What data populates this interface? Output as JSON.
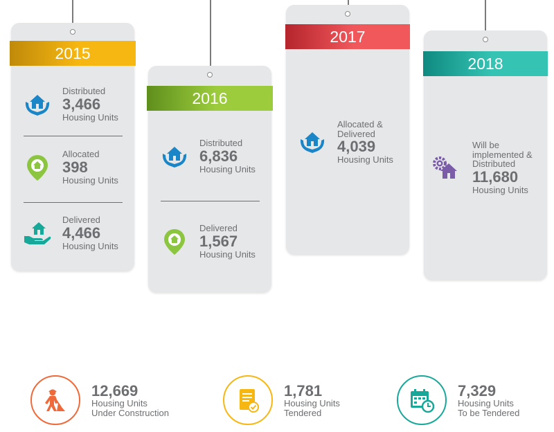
{
  "colors": {
    "y2015": [
      "#c08a0a",
      "#f7b712"
    ],
    "y2016": [
      "#5f8f1c",
      "#9ccc3c"
    ],
    "y2017": [
      "#b5252c",
      "#f0585c"
    ],
    "y2018": [
      "#0f8a80",
      "#35c3b4"
    ],
    "blue": "#1a85c7",
    "green": "#8cc540",
    "teal": "#17a89a",
    "purple": "#7a5ca8",
    "orange": "#ef6a3a",
    "gold": "#f7b712"
  },
  "cards": [
    {
      "year": "2015",
      "entries": [
        {
          "icon": "hands-house-icon",
          "label": "Distributed",
          "value": "3,466",
          "unit": "Housing Units"
        },
        {
          "icon": "location-pin-house-icon",
          "label": "Allocated",
          "value": "398",
          "unit": "Housing Units"
        },
        {
          "icon": "hand-house-icon",
          "label": "Delivered",
          "value": "4,466",
          "unit": "Housing Units"
        }
      ]
    },
    {
      "year": "2016",
      "entries": [
        {
          "icon": "hands-house-icon",
          "label": "Distributed",
          "value": "6,836",
          "unit": "Housing Units"
        },
        {
          "icon": "location-pin-house-icon",
          "label": "Delivered",
          "value": "1,567",
          "unit": "Housing Units"
        }
      ]
    },
    {
      "year": "2017",
      "entries": [
        {
          "icon": "hands-house-icon",
          "label1": "Allocated &",
          "label2": "Delivered",
          "value": "4,039",
          "unit": "Housing Units"
        }
      ]
    },
    {
      "year": "2018",
      "entries": [
        {
          "icon": "gear-house-icon",
          "label1": "Will be",
          "label2": "implemented &",
          "label3": "Distributed",
          "value": "11,680",
          "unit": "Housing Units"
        }
      ]
    }
  ],
  "stats": [
    {
      "icon": "construction-worker-icon",
      "value": "12,669",
      "line1": "Housing Units",
      "line2": "Under Construction"
    },
    {
      "icon": "document-check-icon",
      "value": "1,781",
      "line1": "Housing Units",
      "line2": "Tendered"
    },
    {
      "icon": "calendar-clock-icon",
      "value": "7,329",
      "line1": "Housing Units",
      "line2": "To be Tendered"
    }
  ]
}
